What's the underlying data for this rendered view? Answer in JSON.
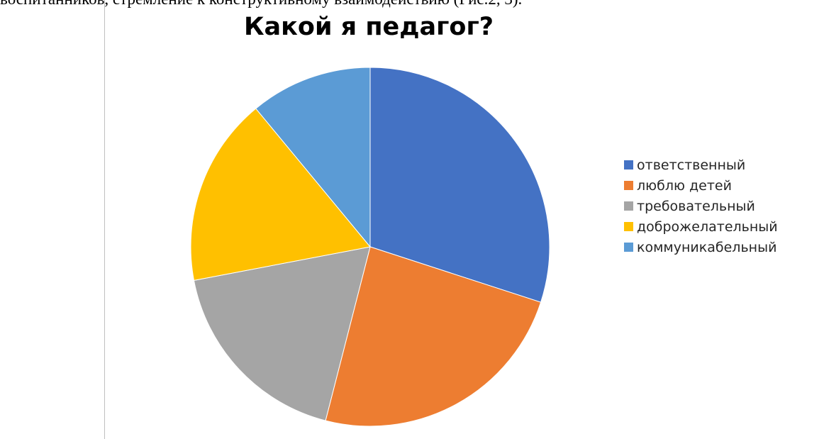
{
  "page": {
    "body_text": "воспитанников, стремление к конструктивному взаимодействию (Рис.2, 3)."
  },
  "chart_data": {
    "type": "pie",
    "title": "Какой я педагог?",
    "categories": [
      "ответственный",
      "люблю детей",
      "требовательный",
      "доброжелательный",
      "коммуникабельный"
    ],
    "values": [
      30,
      24,
      18,
      17,
      11
    ],
    "colors": [
      "#4472c4",
      "#ed7d31",
      "#a5a5a5",
      "#ffc000",
      "#5b9bd5"
    ],
    "legend_position": "right"
  }
}
